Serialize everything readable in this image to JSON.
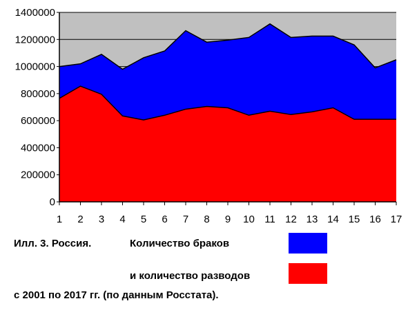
{
  "chart_data": {
    "type": "area",
    "categories": [
      "1",
      "2",
      "3",
      "4",
      "5",
      "6",
      "7",
      "8",
      "9",
      "10",
      "11",
      "12",
      "13",
      "14",
      "15",
      "16",
      "17"
    ],
    "ylim": [
      0,
      1400000
    ],
    "yticks": [
      "0",
      "200000",
      "400000",
      "600000",
      "800000",
      "1000000",
      "1200000",
      "1400000"
    ],
    "grid": true,
    "series": [
      {
        "name": "Количество браков",
        "color": "#0000ff",
        "values": [
          1000000,
          1020000,
          1090000,
          980000,
          1065000,
          1115000,
          1265000,
          1180000,
          1195000,
          1215000,
          1315000,
          1215000,
          1225000,
          1225000,
          1160000,
          990000,
          1050000
        ]
      },
      {
        "name": "и количество разводов",
        "color": "#ff0000",
        "values": [
          765000,
          855000,
          795000,
          635000,
          605000,
          640000,
          685000,
          705000,
          695000,
          640000,
          670000,
          645000,
          665000,
          695000,
          610000,
          610000,
          610000
        ]
      }
    ]
  },
  "caption": {
    "line1_left": "Илл. 3. Россия.",
    "line1_right": "Количество браков",
    "line2": "и количество разводов",
    "line3": "с 2001 по 2017 гг. (по данным Росстата)."
  }
}
